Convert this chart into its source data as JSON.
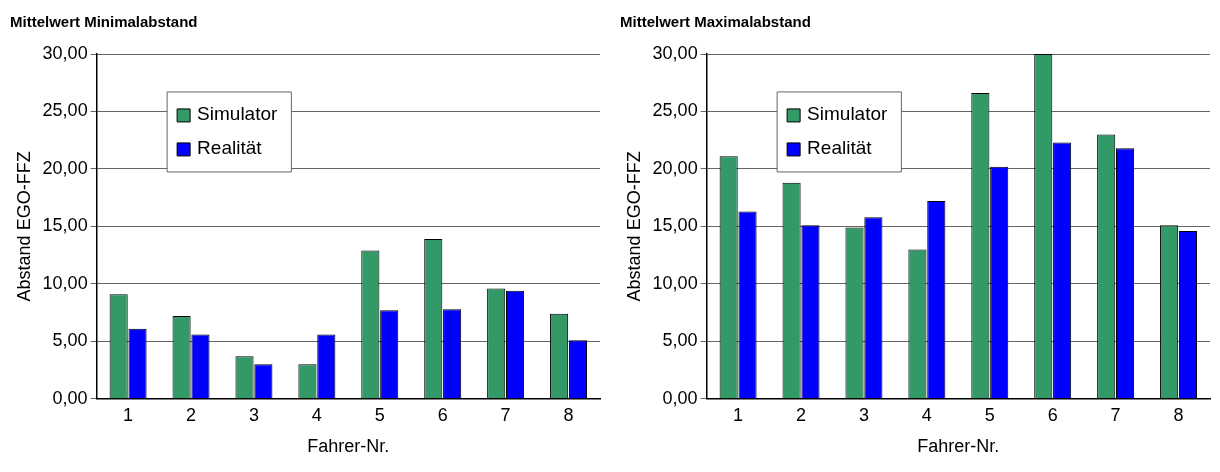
{
  "chart_data": [
    {
      "type": "bar",
      "title": "Mittelwert Minimalabstand",
      "xlabel": "Fahrer-Nr.",
      "ylabel": "Abstand EGO-FFZ",
      "categories": [
        "1",
        "2",
        "3",
        "4",
        "5",
        "6",
        "7",
        "8"
      ],
      "series": [
        {
          "name": "Simulator",
          "color": "#339966",
          "values": [
            9.1,
            7.2,
            3.7,
            3.0,
            12.9,
            13.9,
            9.6,
            7.4
          ]
        },
        {
          "name": "Realität",
          "color": "#0000ff",
          "values": [
            6.1,
            5.6,
            3.0,
            5.6,
            7.7,
            7.8,
            9.4,
            5.1
          ]
        }
      ],
      "ylim": [
        0,
        30
      ],
      "yticks": [
        {
          "value": 0,
          "label": "0,00"
        },
        {
          "value": 5,
          "label": "5,00"
        },
        {
          "value": 10,
          "label": "10,00"
        },
        {
          "value": 15,
          "label": "15,00"
        },
        {
          "value": 20,
          "label": "20,00"
        },
        {
          "value": 25,
          "label": "25,00"
        },
        {
          "value": 30,
          "label": "30,00"
        }
      ],
      "grid": "y",
      "legend": "top left"
    },
    {
      "type": "bar",
      "title": "Mittelwert Maximalabstand",
      "xlabel": "Fahrer-Nr.",
      "ylabel": "Abstand EGO-FFZ",
      "categories": [
        "1",
        "2",
        "3",
        "4",
        "5",
        "6",
        "7",
        "8"
      ],
      "series": [
        {
          "name": "Simulator",
          "color": "#339966",
          "values": [
            21.1,
            18.8,
            14.9,
            13.0,
            26.6,
            30.0,
            23.0,
            15.1
          ]
        },
        {
          "name": "Realität",
          "color": "#0000ff",
          "values": [
            16.3,
            15.1,
            15.8,
            17.2,
            20.2,
            22.3,
            21.8,
            14.6
          ]
        }
      ],
      "ylim": [
        0,
        30
      ],
      "yticks": [
        {
          "value": 0,
          "label": "0,00"
        },
        {
          "value": 5,
          "label": "5,00"
        },
        {
          "value": 10,
          "label": "10,00"
        },
        {
          "value": 15,
          "label": "15,00"
        },
        {
          "value": 20,
          "label": "20,00"
        },
        {
          "value": 25,
          "label": "25,00"
        },
        {
          "value": 30,
          "label": "30,00"
        }
      ],
      "grid": "y",
      "legend": "top left"
    }
  ]
}
